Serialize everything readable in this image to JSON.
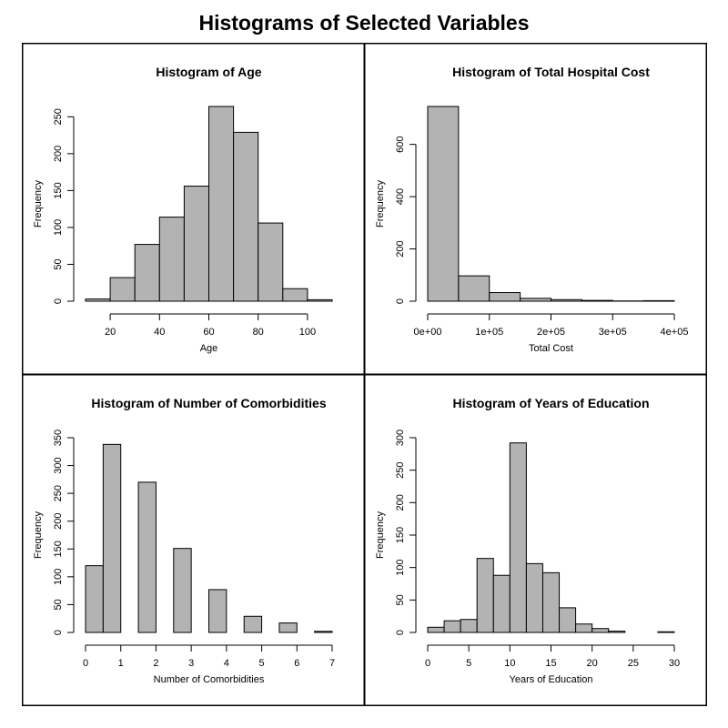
{
  "page": {
    "title": "Histograms of Selected Variables"
  },
  "colors": {
    "bar_fill": "#b3b3b3",
    "bar_stroke": "#000000",
    "frame": "#000000"
  },
  "chart_data": [
    {
      "type": "bar",
      "title": "Histogram of Age",
      "xlabel": "Age",
      "ylabel": "Frequency",
      "bins": [
        [
          10,
          20
        ],
        [
          20,
          30
        ],
        [
          30,
          40
        ],
        [
          40,
          50
        ],
        [
          50,
          60
        ],
        [
          60,
          70
        ],
        [
          70,
          80
        ],
        [
          80,
          90
        ],
        [
          90,
          100
        ],
        [
          100,
          110
        ]
      ],
      "values": [
        3,
        32,
        77,
        114,
        156,
        264,
        229,
        106,
        17,
        2
      ],
      "xlim": [
        10,
        110
      ],
      "ylim": [
        0,
        264
      ],
      "xticks": [
        20,
        40,
        60,
        80,
        100
      ],
      "xtick_labels": [
        "20",
        "40",
        "60",
        "80",
        "100"
      ],
      "yticks": [
        0,
        50,
        100,
        150,
        200,
        250
      ],
      "ytick_labels": [
        "0",
        "50",
        "100",
        "150",
        "200",
        "250"
      ]
    },
    {
      "type": "bar",
      "title": "Histogram of Total Hospital Cost",
      "xlabel": "Total Cost",
      "ylabel": "Frequency",
      "bins": [
        [
          0,
          50000
        ],
        [
          50000,
          100000
        ],
        [
          100000,
          150000
        ],
        [
          150000,
          200000
        ],
        [
          200000,
          250000
        ],
        [
          250000,
          300000
        ],
        [
          300000,
          350000
        ],
        [
          350000,
          400000
        ]
      ],
      "values": [
        745,
        97,
        33,
        11,
        6,
        3,
        1,
        2
      ],
      "xlim": [
        0,
        400000
      ],
      "ylim": [
        0,
        745
      ],
      "xticks": [
        0,
        100000,
        200000,
        300000,
        400000
      ],
      "xtick_labels": [
        "0e+00",
        "1e+05",
        "2e+05",
        "3e+05",
        "4e+05"
      ],
      "yticks": [
        0,
        200,
        400,
        600
      ],
      "ytick_labels": [
        "0",
        "200",
        "400",
        "600"
      ]
    },
    {
      "type": "bar",
      "title": "Histogram of Number of Comorbidities",
      "xlabel": "Number of Comorbidities",
      "ylabel": "Frequency",
      "bins": [
        [
          0,
          0.5
        ],
        [
          0.5,
          1
        ],
        [
          1,
          1.5
        ],
        [
          1.5,
          2
        ],
        [
          2,
          2.5
        ],
        [
          2.5,
          3
        ],
        [
          3,
          3.5
        ],
        [
          3.5,
          4
        ],
        [
          4,
          4.5
        ],
        [
          4.5,
          5
        ],
        [
          5,
          5.5
        ],
        [
          5.5,
          6
        ],
        [
          6,
          6.5
        ],
        [
          6.5,
          7
        ]
      ],
      "values": [
        120,
        338,
        0,
        270,
        0,
        151,
        0,
        77,
        0,
        29,
        0,
        17,
        0,
        2
      ],
      "xlim": [
        0,
        7
      ],
      "ylim": [
        0,
        350
      ],
      "xticks": [
        0,
        1,
        2,
        3,
        4,
        5,
        6,
        7
      ],
      "xtick_labels": [
        "0",
        "1",
        "2",
        "3",
        "4",
        "5",
        "6",
        "7"
      ],
      "yticks": [
        0,
        50,
        100,
        150,
        200,
        250,
        300,
        350
      ],
      "ytick_labels": [
        "0",
        "50",
        "100",
        "150",
        "200",
        "250",
        "300",
        "350"
      ]
    },
    {
      "type": "bar",
      "title": "Histogram of Years of Education",
      "xlabel": "Years of Education",
      "ylabel": "Frequency",
      "bins": [
        [
          0,
          2
        ],
        [
          2,
          4
        ],
        [
          4,
          6
        ],
        [
          6,
          8
        ],
        [
          8,
          10
        ],
        [
          10,
          12
        ],
        [
          12,
          14
        ],
        [
          14,
          16
        ],
        [
          16,
          18
        ],
        [
          18,
          20
        ],
        [
          20,
          22
        ],
        [
          22,
          24
        ],
        [
          24,
          26
        ],
        [
          26,
          28
        ],
        [
          28,
          30
        ]
      ],
      "values": [
        8,
        18,
        20,
        114,
        88,
        292,
        106,
        92,
        38,
        13,
        6,
        2,
        0,
        0,
        1
      ],
      "xlim": [
        0,
        30
      ],
      "ylim": [
        0,
        300
      ],
      "xticks": [
        0,
        5,
        10,
        15,
        20,
        25,
        30
      ],
      "xtick_labels": [
        "0",
        "5",
        "10",
        "15",
        "20",
        "25",
        "30"
      ],
      "yticks": [
        0,
        50,
        100,
        150,
        200,
        250,
        300
      ],
      "ytick_labels": [
        "0",
        "50",
        "100",
        "150",
        "200",
        "250",
        "300"
      ]
    }
  ]
}
